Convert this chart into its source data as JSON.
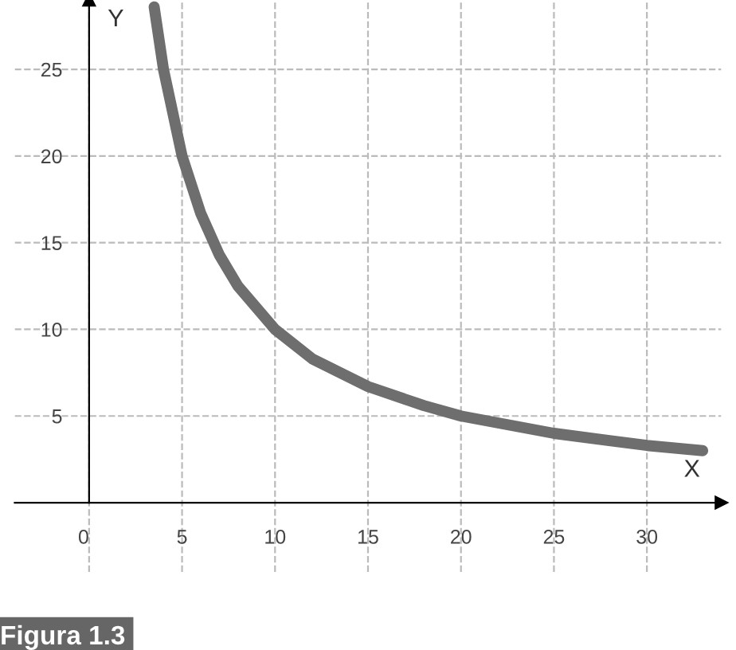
{
  "chart_data": {
    "type": "line",
    "xlabel": "X",
    "ylabel": "Y",
    "x": [
      3.5,
      4,
      5,
      6,
      7,
      8,
      10,
      12,
      15,
      18,
      20,
      25,
      30,
      33
    ],
    "series": [
      {
        "color": "#6e6e6e",
        "values": [
          28.6,
          25,
          20,
          16.7,
          14.3,
          12.5,
          10,
          8.3,
          6.7,
          5.6,
          5,
          4,
          3.3,
          3.0
        ]
      }
    ],
    "xlim": [
      -4,
      34
    ],
    "ylim": [
      -4,
      29
    ],
    "xticks": [
      0,
      5,
      10,
      15,
      20,
      25,
      30
    ],
    "yticks": [
      5,
      10,
      15,
      20,
      25
    ],
    "grid": true,
    "line_style": "solid",
    "marker": "none",
    "annotations": [
      "Figura 1.3"
    ]
  }
}
